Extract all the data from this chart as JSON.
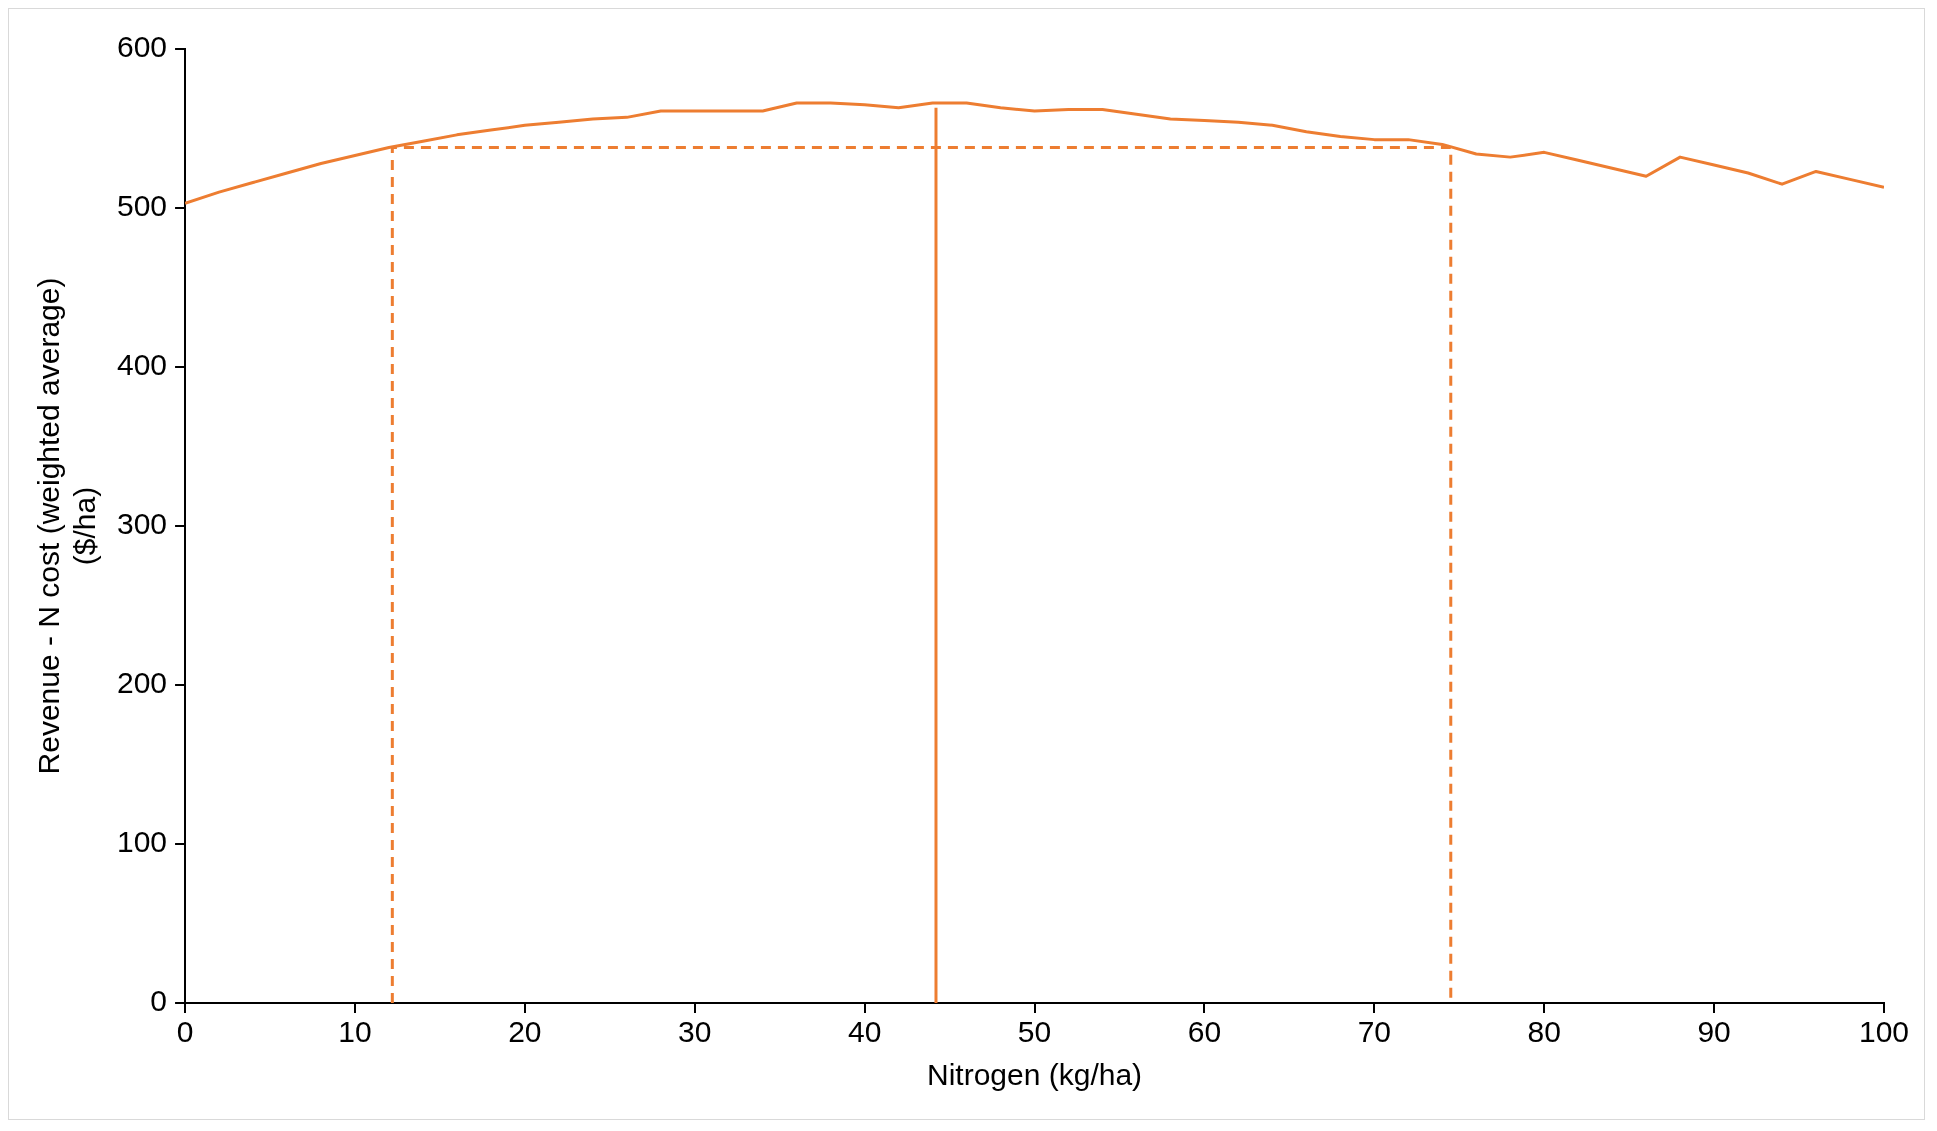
{
  "chart_data": {
    "type": "line",
    "xlabel": "Nitrogen (kg/ha)",
    "ylabel": "Revenue - N cost (weighted average) ($/ha)",
    "xlim": [
      0,
      100
    ],
    "xticks": [
      0,
      10,
      20,
      30,
      40,
      50,
      60,
      70,
      80,
      90,
      100
    ],
    "ylim": [
      0,
      600
    ],
    "yticks": [
      0,
      100,
      200,
      300,
      400,
      500,
      600
    ],
    "grid": false,
    "legend": false,
    "marker": "none",
    "series": [
      {
        "color": "#ed7d31",
        "line_style": "solid",
        "x": [
          0,
          2,
          4,
          6,
          8,
          10,
          12,
          14,
          16,
          18,
          20,
          22,
          24,
          26,
          28,
          30,
          32,
          34,
          36,
          38,
          40,
          42,
          44,
          46,
          48,
          50,
          52,
          54,
          56,
          58,
          60,
          62,
          64,
          66,
          68,
          70,
          72,
          74,
          76,
          78,
          80,
          82,
          84,
          86,
          88,
          90,
          92,
          94,
          96,
          98,
          100
        ],
        "values": [
          503,
          510,
          516,
          522,
          528,
          533,
          538,
          542,
          546,
          549,
          552,
          554,
          556,
          557,
          561,
          561,
          561,
          561,
          566,
          566,
          565,
          563,
          566,
          566,
          563,
          561,
          562,
          562,
          559,
          556,
          555,
          554,
          552,
          548,
          545,
          543,
          543,
          540,
          534,
          532,
          535,
          530,
          525,
          520,
          532,
          527,
          522,
          515,
          523,
          518,
          513
        ]
      },
      {
        "color": "#ed7d31",
        "line_style": "dashed",
        "x": [
          12.2,
          12.2,
          74.5,
          74.5
        ],
        "values": [
          0,
          538,
          538,
          0
        ]
      },
      {
        "color": "#ed7d31",
        "line_style": "solid",
        "x": [
          44.2,
          44.2
        ],
        "values": [
          0,
          563
        ]
      }
    ]
  }
}
